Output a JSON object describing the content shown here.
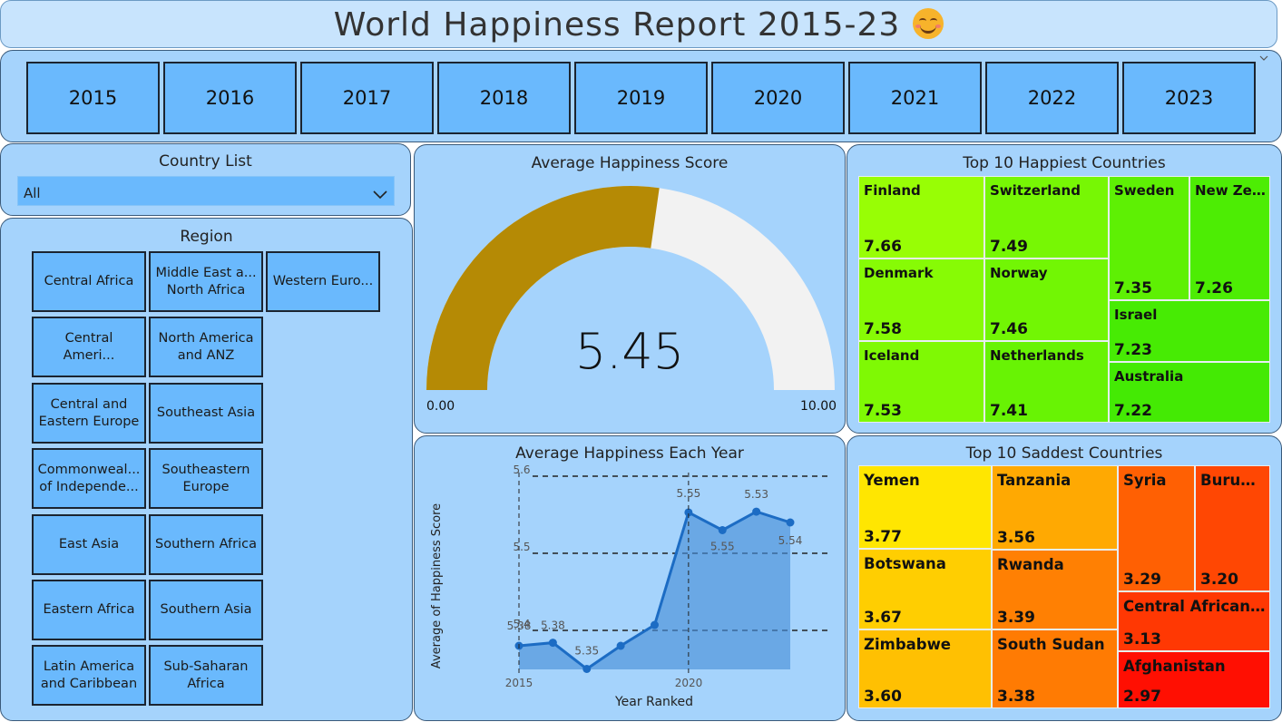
{
  "header": {
    "title": "World Happiness Report 2015-23"
  },
  "years": [
    "2015",
    "2016",
    "2017",
    "2018",
    "2019",
    "2020",
    "2021",
    "2022",
    "2023"
  ],
  "country_list": {
    "title": "Country List",
    "selected": "All"
  },
  "region": {
    "title": "Region",
    "items": [
      "Central Africa",
      "Middle East a... North Africa",
      "Western Euro...",
      "Central Ameri...",
      "North America and ANZ",
      "Central and Eastern Europe",
      "Southeast Asia",
      "Commonweal... of Independe...",
      "Southeastern Europe",
      "East Asia",
      "Southern Africa",
      "Eastern Africa",
      "Southern Asia",
      "Latin America and Caribbean",
      "Sub-Saharan Africa"
    ]
  },
  "gauge": {
    "title": "Average Happiness Score",
    "value": 5.45,
    "value_label": "5.45",
    "min_label": "0.00",
    "max_label": "10.00",
    "min": 0,
    "max": 10,
    "fill_color": "#b58a05",
    "track_color": "#f2f2f2"
  },
  "happiest": {
    "title": "Top 10 Happiest Countries",
    "items": [
      {
        "name": "Finland",
        "value": "7.66",
        "color": "#98fe05"
      },
      {
        "name": "Denmark",
        "value": "7.58",
        "color": "#87fb05"
      },
      {
        "name": "Iceland",
        "value": "7.53",
        "color": "#7ff904"
      },
      {
        "name": "Switzerland",
        "value": "7.49",
        "color": "#77f704"
      },
      {
        "name": "Norway",
        "value": "7.46",
        "color": "#72f604"
      },
      {
        "name": "Netherlands",
        "value": "7.41",
        "color": "#68f304"
      },
      {
        "name": "Sweden",
        "value": "7.35",
        "color": "#5ef004"
      },
      {
        "name": "New Zeal...",
        "value": "7.26",
        "color": "#4ded04"
      },
      {
        "name": "Israel",
        "value": "7.23",
        "color": "#47eb04"
      },
      {
        "name": "Australia",
        "value": "7.22",
        "color": "#44ea04"
      }
    ]
  },
  "line": {
    "title": "Average Happiness Each Year",
    "xlabel": "Year Ranked",
    "ylabel": "Average of Happiness Score",
    "ticks_y": [
      "5.6",
      "5.5",
      "5.4"
    ],
    "ticks_x": [
      "2015",
      "2020"
    ],
    "point_labels": [
      "5.38",
      "5.38",
      "5.35",
      "5.55",
      "5.55",
      "5.53",
      "5.54"
    ]
  },
  "chart_data": {
    "type": "area",
    "title": "Average Happiness Each Year",
    "xlabel": "Year Ranked",
    "ylabel": "Average of Happiness Score",
    "x": [
      2015,
      2016,
      2017,
      2018,
      2019,
      2020,
      2021,
      2022,
      2023
    ],
    "values": [
      5.38,
      5.384,
      5.35,
      5.38,
      5.407,
      5.553,
      5.53,
      5.554,
      5.54
    ],
    "ylim": [
      5.35,
      5.6
    ],
    "yticks": [
      5.4,
      5.5,
      5.6
    ],
    "xticks": [
      2015,
      2020
    ],
    "grid": "dashed horizontal",
    "labeled_points": [
      [
        2015,
        "5.38"
      ],
      [
        2016,
        "5.38"
      ],
      [
        2017,
        "5.35"
      ],
      [
        2020,
        "5.55"
      ],
      [
        2021,
        "5.53"
      ],
      [
        2022,
        "5.55"
      ],
      [
        2023,
        "5.54"
      ]
    ]
  },
  "saddest": {
    "title": "Top 10 Saddest Countries",
    "items": [
      {
        "name": "Yemen",
        "value": "3.77",
        "color": "#ffe601"
      },
      {
        "name": "Botswana",
        "value": "3.67",
        "color": "#ffce01"
      },
      {
        "name": "Zimbabwe",
        "value": "3.60",
        "color": "#ffc002"
      },
      {
        "name": "Tanzania",
        "value": "3.56",
        "color": "#ffa902"
      },
      {
        "name": "Rwanda",
        "value": "3.39",
        "color": "#ff8003"
      },
      {
        "name": "South Sudan",
        "value": "3.38",
        "color": "#ff7b03"
      },
      {
        "name": "Syria",
        "value": "3.29",
        "color": "#ff6003"
      },
      {
        "name": "Burundi",
        "value": "3.20",
        "color": "#ff4703"
      },
      {
        "name": "Central African ...",
        "value": "3.13",
        "color": "#ff3803"
      },
      {
        "name": "Afghanistan",
        "value": "2.97",
        "color": "#ff0f02"
      }
    ]
  }
}
